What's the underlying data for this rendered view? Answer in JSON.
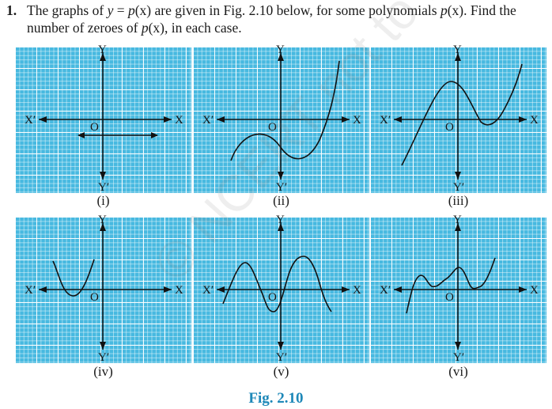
{
  "question": {
    "number": "1.",
    "text_a": "The graphs of ",
    "eq_y": "y",
    "eq_mid": " = ",
    "eq_p": "p",
    "eq_x": "(x)",
    "text_b": " are given in Fig. 2.10 below, for some polynomials ",
    "p2": "p",
    "x2": "(x)",
    "text_c": ". Find the number of zeroes of ",
    "p3": "p",
    "x3": "(x)",
    "text_d": ", in each case."
  },
  "axes": {
    "x_pos": "X",
    "x_neg": "X′",
    "y_pos": "Y",
    "y_neg": "Y′",
    "origin": "O"
  },
  "captions": [
    "(i)",
    "(ii)",
    "(iii)",
    "(iv)",
    "(v)",
    "(vi)"
  ],
  "figure_label": "Fig. 2.10",
  "watermark": "© NCERT not to be republished",
  "colors": {
    "grid": "#47b9e0",
    "figure_label": "#1e88b8"
  }
}
